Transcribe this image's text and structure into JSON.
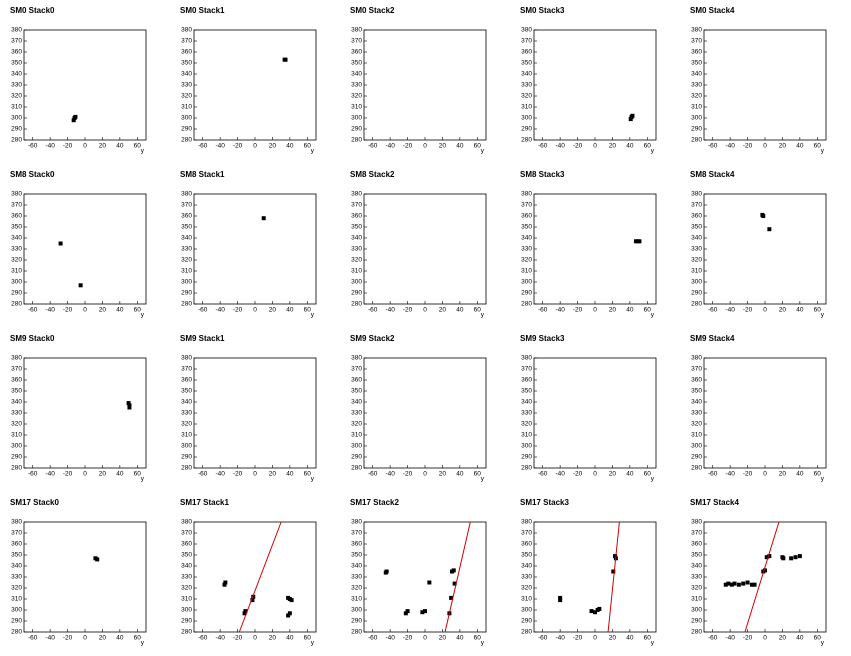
{
  "chart_data": [
    {
      "type": "scatter",
      "title": "SM0 Stack0",
      "x_label": "y",
      "xlim": [
        -70,
        70
      ],
      "ylim": [
        280,
        380
      ],
      "xticks": [
        -60,
        -40,
        -20,
        0,
        20,
        40,
        60
      ],
      "yticks": [
        280,
        290,
        300,
        310,
        320,
        330,
        340,
        350,
        360,
        370,
        380
      ],
      "color": "#000000",
      "x": [
        -12,
        -13,
        -11
      ],
      "y": [
        300,
        298,
        301
      ]
    },
    {
      "type": "scatter",
      "title": "SM0 Stack1",
      "x_label": "y",
      "xlim": [
        -70,
        70
      ],
      "ylim": [
        280,
        380
      ],
      "xticks": [
        -60,
        -40,
        -20,
        0,
        20,
        40,
        60
      ],
      "yticks": [
        280,
        290,
        300,
        310,
        320,
        330,
        340,
        350,
        360,
        370,
        380
      ],
      "color": "#000000",
      "x": [
        34,
        35
      ],
      "y": [
        353,
        353
      ]
    },
    {
      "type": "scatter",
      "title": "SM0 Stack2",
      "x_label": "y",
      "xlim": [
        -70,
        70
      ],
      "ylim": [
        280,
        380
      ],
      "xticks": [
        -60,
        -40,
        -20,
        0,
        20,
        40,
        60
      ],
      "yticks": [
        280,
        290,
        300,
        310,
        320,
        330,
        340,
        350,
        360,
        370,
        380
      ],
      "color": "#000000",
      "x": [],
      "y": []
    },
    {
      "type": "scatter",
      "title": "SM0 Stack3",
      "x_label": "y",
      "xlim": [
        -70,
        70
      ],
      "ylim": [
        280,
        380
      ],
      "xticks": [
        -60,
        -40,
        -20,
        0,
        20,
        40,
        60
      ],
      "yticks": [
        280,
        290,
        300,
        310,
        320,
        330,
        340,
        350,
        360,
        370,
        380
      ],
      "color": "#000000",
      "x": [
        41,
        42,
        43
      ],
      "y": [
        299,
        301,
        302
      ]
    },
    {
      "type": "scatter",
      "title": "SM0 Stack4",
      "x_label": "y",
      "xlim": [
        -70,
        70
      ],
      "ylim": [
        280,
        380
      ],
      "xticks": [
        -60,
        -40,
        -20,
        0,
        20,
        40,
        60
      ],
      "yticks": [
        280,
        290,
        300,
        310,
        320,
        330,
        340,
        350,
        360,
        370,
        380
      ],
      "color": "#000000",
      "x": [],
      "y": []
    },
    {
      "type": "scatter",
      "title": "SM8 Stack0",
      "x_label": "y",
      "xlim": [
        -70,
        70
      ],
      "ylim": [
        280,
        380
      ],
      "xticks": [
        -60,
        -40,
        -20,
        0,
        20,
        40,
        60
      ],
      "yticks": [
        280,
        290,
        300,
        310,
        320,
        330,
        340,
        350,
        360,
        370,
        380
      ],
      "color": "#000000",
      "x": [
        -28,
        -5
      ],
      "y": [
        335,
        297
      ]
    },
    {
      "type": "scatter",
      "title": "SM8 Stack1",
      "x_label": "y",
      "xlim": [
        -70,
        70
      ],
      "ylim": [
        280,
        380
      ],
      "xticks": [
        -60,
        -40,
        -20,
        0,
        20,
        40,
        60
      ],
      "yticks": [
        280,
        290,
        300,
        310,
        320,
        330,
        340,
        350,
        360,
        370,
        380
      ],
      "color": "#000000",
      "x": [
        10
      ],
      "y": [
        358
      ]
    },
    {
      "type": "scatter",
      "title": "SM8 Stack2",
      "x_label": "y",
      "xlim": [
        -70,
        70
      ],
      "ylim": [
        280,
        380
      ],
      "xticks": [
        -60,
        -40,
        -20,
        0,
        20,
        40,
        60
      ],
      "yticks": [
        280,
        290,
        300,
        310,
        320,
        330,
        340,
        350,
        360,
        370,
        380
      ],
      "color": "#000000",
      "x": [],
      "y": []
    },
    {
      "type": "scatter",
      "title": "SM8 Stack3",
      "x_label": "y",
      "xlim": [
        -70,
        70
      ],
      "ylim": [
        280,
        380
      ],
      "xticks": [
        -60,
        -40,
        -20,
        0,
        20,
        40,
        60
      ],
      "yticks": [
        280,
        290,
        300,
        310,
        320,
        330,
        340,
        350,
        360,
        370,
        380
      ],
      "color": "#000000",
      "x": [
        47,
        49,
        51
      ],
      "y": [
        337,
        337,
        337
      ]
    },
    {
      "type": "scatter",
      "title": "SM8 Stack4",
      "x_label": "y",
      "xlim": [
        -70,
        70
      ],
      "ylim": [
        280,
        380
      ],
      "xticks": [
        -60,
        -40,
        -20,
        0,
        20,
        40,
        60
      ],
      "yticks": [
        280,
        290,
        300,
        310,
        320,
        330,
        340,
        350,
        360,
        370,
        380
      ],
      "color": "#000000",
      "x": [
        -3,
        -2,
        5
      ],
      "y": [
        361,
        360,
        348
      ]
    },
    {
      "type": "scatter",
      "title": "SM9 Stack0",
      "x_label": "y",
      "xlim": [
        -70,
        70
      ],
      "ylim": [
        280,
        380
      ],
      "xticks": [
        -60,
        -40,
        -20,
        0,
        20,
        40,
        60
      ],
      "yticks": [
        280,
        290,
        300,
        310,
        320,
        330,
        340,
        350,
        360,
        370,
        380
      ],
      "color": "#000000",
      "x": [
        50,
        51,
        51
      ],
      "y": [
        339,
        337,
        335
      ]
    },
    {
      "type": "scatter",
      "title": "SM9 Stack1",
      "x_label": "y",
      "xlim": [
        -70,
        70
      ],
      "ylim": [
        280,
        380
      ],
      "xticks": [
        -60,
        -40,
        -20,
        0,
        20,
        40,
        60
      ],
      "yticks": [
        280,
        290,
        300,
        310,
        320,
        330,
        340,
        350,
        360,
        370,
        380
      ],
      "color": "#000000",
      "x": [],
      "y": []
    },
    {
      "type": "scatter",
      "title": "SM9 Stack2",
      "x_label": "y",
      "xlim": [
        -70,
        70
      ],
      "ylim": [
        280,
        380
      ],
      "xticks": [
        -60,
        -40,
        -20,
        0,
        20,
        40,
        60
      ],
      "yticks": [
        280,
        290,
        300,
        310,
        320,
        330,
        340,
        350,
        360,
        370,
        380
      ],
      "color": "#000000",
      "x": [],
      "y": []
    },
    {
      "type": "scatter",
      "title": "SM9 Stack3",
      "x_label": "y",
      "xlim": [
        -70,
        70
      ],
      "ylim": [
        280,
        380
      ],
      "xticks": [
        -60,
        -40,
        -20,
        0,
        20,
        40,
        60
      ],
      "yticks": [
        280,
        290,
        300,
        310,
        320,
        330,
        340,
        350,
        360,
        370,
        380
      ],
      "color": "#000000",
      "x": [],
      "y": []
    },
    {
      "type": "scatter",
      "title": "SM9 Stack4",
      "x_label": "y",
      "xlim": [
        -70,
        70
      ],
      "ylim": [
        280,
        380
      ],
      "xticks": [
        -60,
        -40,
        -20,
        0,
        20,
        40,
        60
      ],
      "yticks": [
        280,
        290,
        300,
        310,
        320,
        330,
        340,
        350,
        360,
        370,
        380
      ],
      "color": "#000000",
      "x": [],
      "y": []
    },
    {
      "type": "scatter",
      "title": "SM17 Stack0",
      "x_label": "y",
      "xlim": [
        -70,
        70
      ],
      "ylim": [
        280,
        380
      ],
      "xticks": [
        -60,
        -40,
        -20,
        0,
        20,
        40,
        60
      ],
      "yticks": [
        280,
        290,
        300,
        310,
        320,
        330,
        340,
        350,
        360,
        370,
        380
      ],
      "color": "#000000",
      "x": [
        12,
        14
      ],
      "y": [
        347,
        346
      ]
    },
    {
      "type": "scatter",
      "title": "SM17 Stack1",
      "x_label": "y",
      "xlim": [
        -70,
        70
      ],
      "ylim": [
        280,
        380
      ],
      "xticks": [
        -60,
        -40,
        -20,
        0,
        20,
        40,
        60
      ],
      "yticks": [
        280,
        290,
        300,
        310,
        320,
        330,
        340,
        350,
        360,
        370,
        380
      ],
      "color": "#000000",
      "x": [
        -35,
        -34,
        -12,
        -11,
        -3,
        -2,
        38,
        40,
        42,
        40,
        38
      ],
      "y": [
        323,
        325,
        297,
        299,
        309,
        312,
        311,
        310,
        309,
        297,
        295
      ],
      "fit": {
        "color": "#d00000",
        "x": [
          -18,
          30
        ],
        "y": [
          280,
          380
        ]
      }
    },
    {
      "type": "scatter",
      "title": "SM17 Stack2",
      "x_label": "y",
      "xlim": [
        -70,
        70
      ],
      "ylim": [
        280,
        380
      ],
      "xticks": [
        -60,
        -40,
        -20,
        0,
        20,
        40,
        60
      ],
      "yticks": [
        280,
        290,
        300,
        310,
        320,
        330,
        340,
        350,
        360,
        370,
        380
      ],
      "color": "#000000",
      "x": [
        -45,
        -44,
        -22,
        -20,
        -3,
        0,
        5,
        28,
        30,
        31,
        33,
        34
      ],
      "y": [
        334,
        335,
        297,
        299,
        298,
        299,
        325,
        297,
        311,
        335,
        336,
        324
      ],
      "fit": {
        "color": "#d00000",
        "x": [
          23,
          52
        ],
        "y": [
          280,
          380
        ]
      }
    },
    {
      "type": "scatter",
      "title": "SM17 Stack3",
      "x_label": "y",
      "xlim": [
        -70,
        70
      ],
      "ylim": [
        280,
        380
      ],
      "xticks": [
        -60,
        -40,
        -20,
        0,
        20,
        40,
        60
      ],
      "yticks": [
        280,
        290,
        300,
        310,
        320,
        330,
        340,
        350,
        360,
        370,
        380
      ],
      "color": "#000000",
      "x": [
        -40,
        -40,
        -4,
        0,
        3,
        5,
        21,
        23,
        24
      ],
      "y": [
        311,
        309,
        299,
        298,
        300,
        301,
        335,
        349,
        347
      ],
      "fit": {
        "color": "#d00000",
        "x": [
          15,
          28
        ],
        "y": [
          280,
          380
        ]
      }
    },
    {
      "type": "scatter",
      "title": "SM17 Stack4",
      "x_label": "y",
      "xlim": [
        -70,
        70
      ],
      "ylim": [
        280,
        380
      ],
      "xticks": [
        -60,
        -40,
        -20,
        0,
        20,
        40,
        60
      ],
      "yticks": [
        280,
        290,
        300,
        310,
        320,
        330,
        340,
        350,
        360,
        370,
        380
      ],
      "color": "#000000",
      "x": [
        -45,
        -42,
        -38,
        -35,
        -30,
        -25,
        -20,
        -15,
        -12,
        -2,
        0,
        2,
        5,
        20,
        21,
        30,
        35,
        40
      ],
      "y": [
        323,
        324,
        323,
        324,
        323,
        324,
        325,
        323,
        323,
        335,
        336,
        348,
        349,
        348,
        347,
        347,
        348,
        349
      ],
      "fit": {
        "color": "#d00000",
        "x": [
          -23,
          16
        ],
        "y": [
          280,
          380
        ]
      }
    }
  ]
}
